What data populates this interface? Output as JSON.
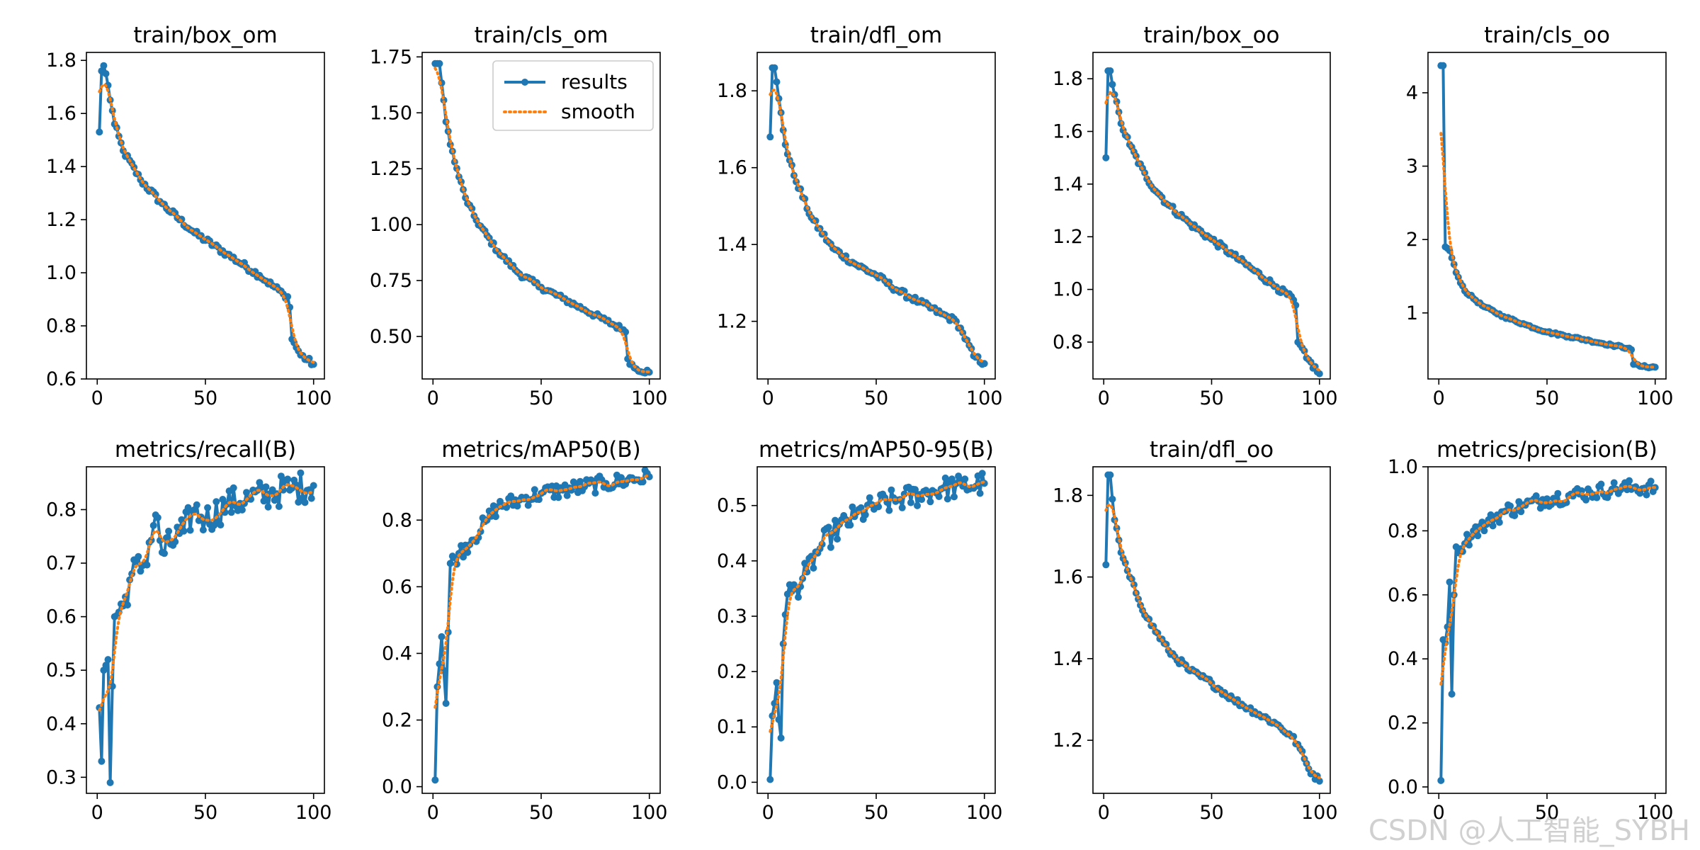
{
  "figure": {
    "background": "#ffffff"
  },
  "watermark": "CSDN @人工智能_SYBH",
  "legend": {
    "panel": "train/cls_om",
    "placement": "upper-right",
    "results_label": "results",
    "smooth_label": "smooth"
  },
  "colors": {
    "results": "#1f77b4",
    "smooth": "#ff7f0e",
    "axes": "#000000"
  },
  "chart_data": [
    {
      "type": "line",
      "title": "train/box_om",
      "xlim": [
        -5,
        105
      ],
      "ylim": [
        0.6,
        1.83
      ],
      "xticks": [
        0,
        50,
        100
      ],
      "yticks": [
        0.6,
        0.8,
        1.0,
        1.2,
        1.4,
        1.6,
        1.8
      ],
      "ytick_labels": [
        "0.6",
        "0.8",
        "1.0",
        "1.2",
        "1.4",
        "1.6",
        "1.8"
      ],
      "shape": "decay",
      "y0": 1.53,
      "anchors": [
        [
          2,
          1.76
        ],
        [
          3,
          1.78
        ],
        [
          4,
          1.75
        ],
        [
          8,
          1.56
        ],
        [
          12,
          1.46
        ],
        [
          20,
          1.35
        ],
        [
          30,
          1.26
        ],
        [
          45,
          1.15
        ],
        [
          60,
          1.07
        ],
        [
          75,
          0.99
        ],
        [
          86,
          0.92
        ],
        [
          88,
          0.91
        ],
        [
          89,
          0.87
        ],
        [
          90,
          0.75
        ],
        [
          94,
          0.69
        ],
        [
          100,
          0.655
        ]
      ],
      "noise": 0.012,
      "lowest_y": 0.65
    },
    {
      "type": "line",
      "title": "train/cls_om",
      "xlim": [
        -5,
        105
      ],
      "ylim": [
        0.31,
        1.77
      ],
      "xticks": [
        0,
        50,
        100
      ],
      "yticks": [
        0.5,
        0.75,
        1.0,
        1.25,
        1.5,
        1.75
      ],
      "ytick_labels": [
        "0.50",
        "0.75",
        "1.00",
        "1.25",
        "1.50",
        "1.75"
      ],
      "shape": "decay",
      "y0": 1.72,
      "anchors": [
        [
          2,
          1.72
        ],
        [
          3,
          1.72
        ],
        [
          6,
          1.46
        ],
        [
          10,
          1.28
        ],
        [
          15,
          1.12
        ],
        [
          20,
          1.02
        ],
        [
          30,
          0.88
        ],
        [
          40,
          0.78
        ],
        [
          50,
          0.72
        ],
        [
          60,
          0.67
        ],
        [
          70,
          0.62
        ],
        [
          80,
          0.57
        ],
        [
          88,
          0.53
        ],
        [
          89,
          0.52
        ],
        [
          90,
          0.4
        ],
        [
          93,
          0.36
        ],
        [
          100,
          0.34
        ]
      ],
      "noise": 0.012,
      "lowest_y": 0.33
    },
    {
      "type": "line",
      "title": "train/dfl_om",
      "xlim": [
        -5,
        105
      ],
      "ylim": [
        1.05,
        1.9
      ],
      "xticks": [
        0,
        50,
        100
      ],
      "yticks": [
        1.2,
        1.4,
        1.6,
        1.8
      ],
      "ytick_labels": [
        "1.2",
        "1.4",
        "1.6",
        "1.8"
      ],
      "shape": "decay",
      "y0": 1.68,
      "anchors": [
        [
          2,
          1.86
        ],
        [
          3,
          1.86
        ],
        [
          5,
          1.78
        ],
        [
          8,
          1.66
        ],
        [
          12,
          1.58
        ],
        [
          20,
          1.47
        ],
        [
          30,
          1.39
        ],
        [
          40,
          1.35
        ],
        [
          50,
          1.32
        ],
        [
          60,
          1.28
        ],
        [
          70,
          1.25
        ],
        [
          80,
          1.22
        ],
        [
          87,
          1.2
        ],
        [
          90,
          1.17
        ],
        [
          95,
          1.11
        ],
        [
          100,
          1.09
        ]
      ],
      "noise": 0.008,
      "lowest_y": 1.07
    },
    {
      "type": "line",
      "title": "train/box_oo",
      "xlim": [
        -5,
        105
      ],
      "ylim": [
        0.66,
        1.9
      ],
      "xticks": [
        0,
        50,
        100
      ],
      "yticks": [
        0.8,
        1.0,
        1.2,
        1.4,
        1.6,
        1.8
      ],
      "ytick_labels": [
        "0.8",
        "1.0",
        "1.2",
        "1.4",
        "1.6",
        "1.8"
      ],
      "shape": "decay",
      "y0": 1.5,
      "anchors": [
        [
          2,
          1.83
        ],
        [
          3,
          1.83
        ],
        [
          5,
          1.74
        ],
        [
          8,
          1.63
        ],
        [
          12,
          1.55
        ],
        [
          20,
          1.42
        ],
        [
          30,
          1.32
        ],
        [
          40,
          1.25
        ],
        [
          50,
          1.19
        ],
        [
          60,
          1.13
        ],
        [
          70,
          1.07
        ],
        [
          80,
          1.01
        ],
        [
          88,
          0.96
        ],
        [
          89,
          0.94
        ],
        [
          90,
          0.8
        ],
        [
          94,
          0.74
        ],
        [
          100,
          0.68
        ]
      ],
      "noise": 0.012,
      "lowest_y": 0.675
    },
    {
      "type": "line",
      "title": "train/cls_oo",
      "xlim": [
        -5,
        105
      ],
      "ylim": [
        0.1,
        4.55
      ],
      "xticks": [
        0,
        50,
        100
      ],
      "yticks": [
        1,
        2,
        3,
        4
      ],
      "ytick_labels": [
        "1",
        "2",
        "3",
        "4"
      ],
      "shape": "decay",
      "y0": 4.37,
      "anchors": [
        [
          2,
          4.37
        ],
        [
          3,
          1.9
        ],
        [
          5,
          1.85
        ],
        [
          8,
          1.55
        ],
        [
          12,
          1.3
        ],
        [
          20,
          1.1
        ],
        [
          30,
          0.95
        ],
        [
          40,
          0.84
        ],
        [
          50,
          0.74
        ],
        [
          60,
          0.68
        ],
        [
          70,
          0.62
        ],
        [
          80,
          0.56
        ],
        [
          88,
          0.52
        ],
        [
          89,
          0.5
        ],
        [
          90,
          0.3
        ],
        [
          94,
          0.27
        ],
        [
          100,
          0.26
        ]
      ],
      "noise": 0.015,
      "lowest_y": 0.25
    },
    {
      "type": "line",
      "title": "metrics/recall(B)",
      "xlim": [
        -5,
        105
      ],
      "ylim": [
        0.27,
        0.88
      ],
      "xticks": [
        0,
        50,
        100
      ],
      "yticks": [
        0.3,
        0.4,
        0.5,
        0.6,
        0.7,
        0.8
      ],
      "ytick_labels": [
        "0.3",
        "0.4",
        "0.5",
        "0.6",
        "0.7",
        "0.8"
      ],
      "shape": "growth",
      "y0": 0.43,
      "anchors": [
        [
          2,
          0.33
        ],
        [
          3,
          0.5
        ],
        [
          5,
          0.52
        ],
        [
          6,
          0.29
        ],
        [
          7,
          0.47
        ],
        [
          8,
          0.6
        ],
        [
          12,
          0.62
        ],
        [
          16,
          0.68
        ],
        [
          22,
          0.7
        ],
        [
          27,
          0.79
        ],
        [
          30,
          0.72
        ],
        [
          40,
          0.76
        ],
        [
          45,
          0.8
        ],
        [
          50,
          0.78
        ],
        [
          60,
          0.81
        ],
        [
          70,
          0.82
        ],
        [
          80,
          0.83
        ],
        [
          90,
          0.84
        ],
        [
          100,
          0.845
        ]
      ],
      "noise": 0.03,
      "highest_y": 0.85
    },
    {
      "type": "line",
      "title": "metrics/mAP50(B)",
      "xlim": [
        -5,
        105
      ],
      "ylim": [
        -0.02,
        0.96
      ],
      "xticks": [
        0,
        50,
        100
      ],
      "yticks": [
        0.0,
        0.2,
        0.4,
        0.6,
        0.8
      ],
      "ytick_labels": [
        "0.0",
        "0.2",
        "0.4",
        "0.6",
        "0.8"
      ],
      "shape": "growth",
      "y0": 0.02,
      "anchors": [
        [
          2,
          0.3
        ],
        [
          4,
          0.45
        ],
        [
          6,
          0.25
        ],
        [
          8,
          0.67
        ],
        [
          12,
          0.7
        ],
        [
          18,
          0.74
        ],
        [
          25,
          0.8
        ],
        [
          30,
          0.84
        ],
        [
          40,
          0.86
        ],
        [
          50,
          0.88
        ],
        [
          60,
          0.89
        ],
        [
          70,
          0.9
        ],
        [
          80,
          0.91
        ],
        [
          90,
          0.92
        ],
        [
          100,
          0.93
        ]
      ],
      "noise": 0.025,
      "highest_y": 0.93
    },
    {
      "type": "line",
      "title": "metrics/mAP50-95(B)",
      "xlim": [
        -5,
        105
      ],
      "ylim": [
        -0.02,
        0.57
      ],
      "xticks": [
        0,
        50,
        100
      ],
      "yticks": [
        0.0,
        0.1,
        0.2,
        0.3,
        0.4,
        0.5
      ],
      "ytick_labels": [
        "0.0",
        "0.1",
        "0.2",
        "0.3",
        "0.4",
        "0.5"
      ],
      "shape": "growth",
      "y0": 0.005,
      "anchors": [
        [
          2,
          0.12
        ],
        [
          4,
          0.18
        ],
        [
          6,
          0.08
        ],
        [
          7,
          0.25
        ],
        [
          9,
          0.34
        ],
        [
          13,
          0.35
        ],
        [
          18,
          0.38
        ],
        [
          25,
          0.43
        ],
        [
          30,
          0.45
        ],
        [
          40,
          0.48
        ],
        [
          50,
          0.5
        ],
        [
          60,
          0.51
        ],
        [
          70,
          0.52
        ],
        [
          80,
          0.53
        ],
        [
          90,
          0.535
        ],
        [
          100,
          0.54
        ]
      ],
      "noise": 0.022,
      "highest_y": 0.545
    },
    {
      "type": "line",
      "title": "train/dfl_oo",
      "xlim": [
        -5,
        105
      ],
      "ylim": [
        1.07,
        1.87
      ],
      "xticks": [
        0,
        50,
        100
      ],
      "yticks": [
        1.2,
        1.4,
        1.6,
        1.8
      ],
      "ytick_labels": [
        "1.2",
        "1.4",
        "1.6",
        "1.8"
      ],
      "shape": "decay",
      "y0": 1.63,
      "anchors": [
        [
          2,
          1.85
        ],
        [
          3,
          1.85
        ],
        [
          5,
          1.74
        ],
        [
          8,
          1.66
        ],
        [
          12,
          1.6
        ],
        [
          20,
          1.5
        ],
        [
          30,
          1.42
        ],
        [
          40,
          1.37
        ],
        [
          50,
          1.34
        ],
        [
          60,
          1.3
        ],
        [
          70,
          1.27
        ],
        [
          80,
          1.24
        ],
        [
          87,
          1.21
        ],
        [
          90,
          1.19
        ],
        [
          95,
          1.13
        ],
        [
          100,
          1.1
        ]
      ],
      "noise": 0.008,
      "lowest_y": 1.085
    },
    {
      "type": "line",
      "title": "metrics/precision(B)",
      "xlim": [
        -5,
        105
      ],
      "ylim": [
        -0.02,
        1.0
      ],
      "xticks": [
        0,
        50,
        100
      ],
      "yticks": [
        0.0,
        0.2,
        0.4,
        0.6,
        0.8,
        1.0
      ],
      "ytick_labels": [
        "0.0",
        "0.2",
        "0.4",
        "0.6",
        "0.8",
        "1.0"
      ],
      "shape": "growth",
      "y0": 0.02,
      "anchors": [
        [
          2,
          0.46
        ],
        [
          3,
          0.45
        ],
        [
          4,
          0.5
        ],
        [
          5,
          0.64
        ],
        [
          6,
          0.29
        ],
        [
          7,
          0.6
        ],
        [
          8,
          0.75
        ],
        [
          12,
          0.76
        ],
        [
          16,
          0.8
        ],
        [
          22,
          0.82
        ],
        [
          30,
          0.86
        ],
        [
          40,
          0.88
        ],
        [
          50,
          0.9
        ],
        [
          60,
          0.91
        ],
        [
          70,
          0.92
        ],
        [
          80,
          0.93
        ],
        [
          90,
          0.935
        ],
        [
          100,
          0.935
        ]
      ],
      "noise": 0.025,
      "highest_y": 0.96
    }
  ]
}
